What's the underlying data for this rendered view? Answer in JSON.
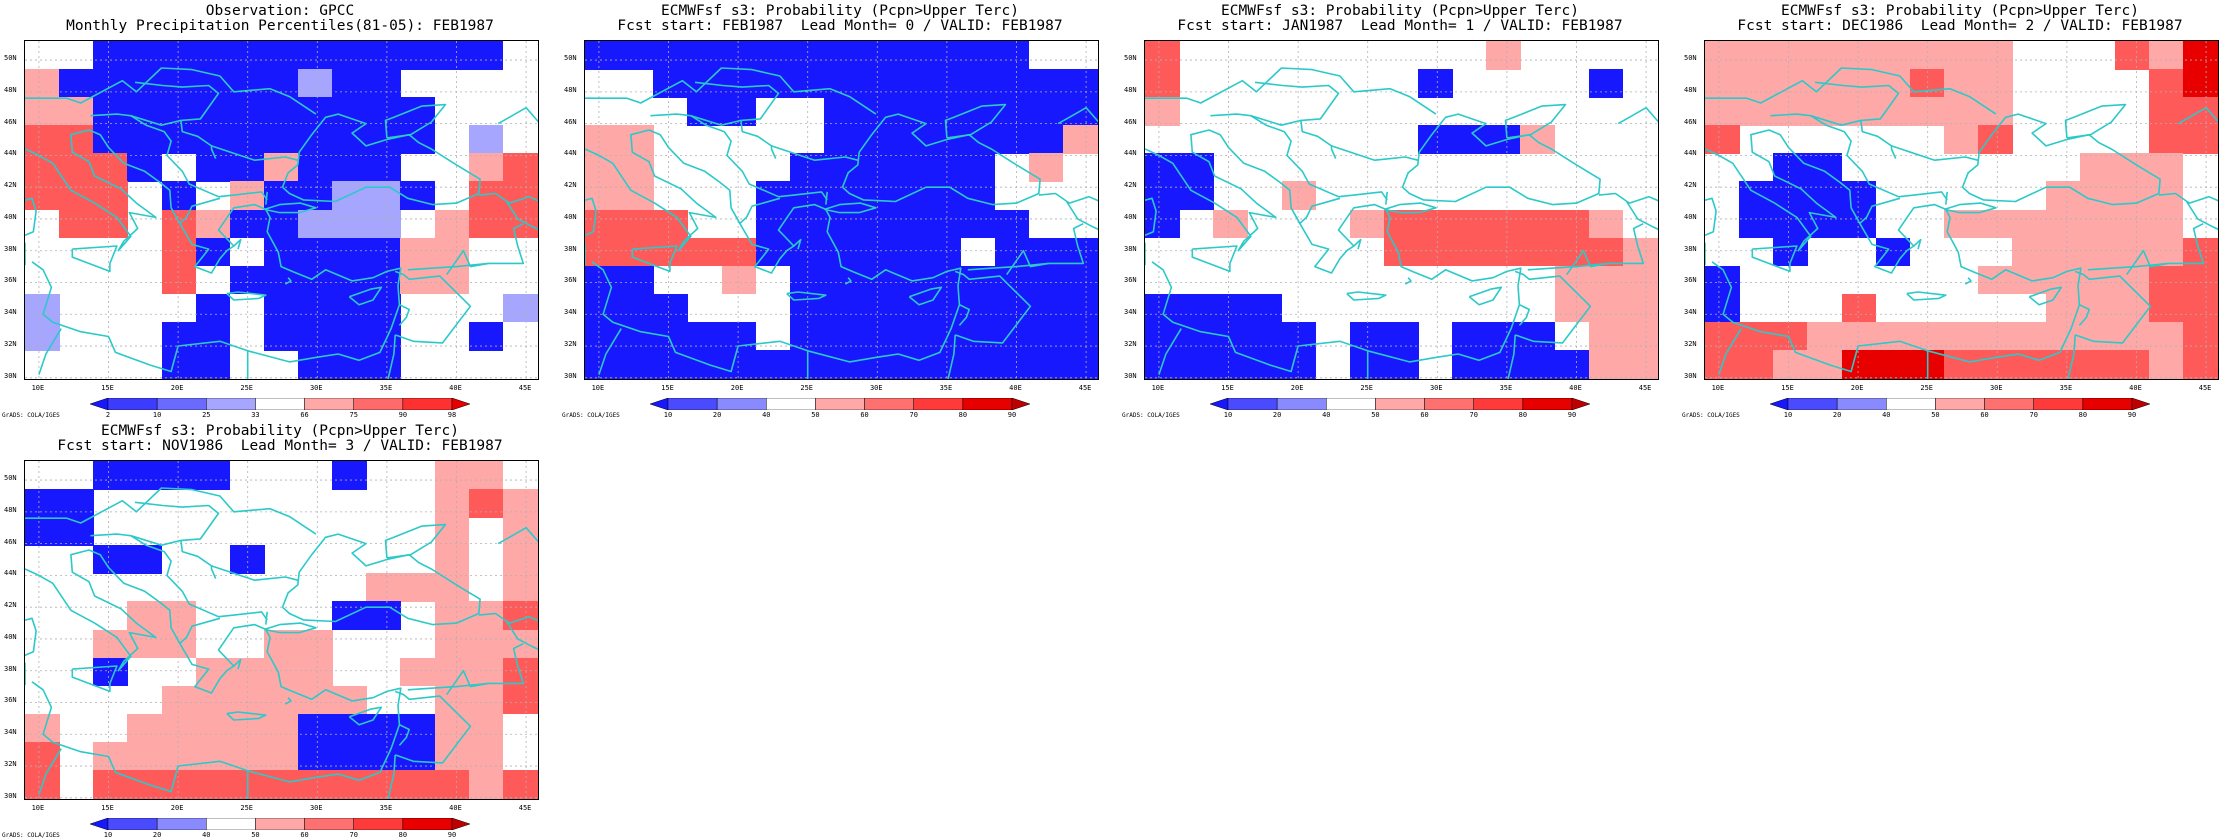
{
  "colors": {
    "dark_blue": "#1818ff",
    "mid_blue": "#5a5aff",
    "light_blue": "#a6a6ff",
    "white": "#ffffff",
    "light_red": "#ffa8a8",
    "mid_red": "#ff5a5a",
    "dark_red": "#e80000",
    "coast": "#2cc9c9",
    "grid": "#b0b0b0"
  },
  "lat_labels": [
    "50N",
    "48N",
    "46N",
    "44N",
    "42N",
    "40N",
    "38N",
    "36N",
    "34N",
    "32N",
    "30N"
  ],
  "lon_labels": [
    "10E",
    "15E",
    "20E",
    "25E",
    "30E",
    "35E",
    "40E",
    "45E"
  ],
  "credit": "GrADS: COLA/IGES",
  "panels": [
    {
      "title1": "Observation: GPCC",
      "title2": "Monthly Precipitation Percentiles(81-05): FEB1987",
      "cbar_ticks": [
        "2",
        "10",
        "25",
        "33",
        "66",
        "75",
        "90",
        "98"
      ],
      "cbar_colors": [
        "#1818ff",
        "#3c3cff",
        "#6a6aff",
        "#a6a6ff",
        "#ffffff",
        "#ffa8a8",
        "#ff6a6a",
        "#ff3030",
        "#e80000"
      ],
      "grid": [
        "WWBBBBBBBBBBBBW",
        "wBBBBBBBbBBWWWW",
        "wwBBBBBBBBBBWWW",
        "RRBBBBBBBBBBWbW",
        "RRRBWBBwBBBWWwR",
        "RRRWBWwBBbbBWRR",
        "WRRWRwBBbbbWwRR",
        "WWWWRBWBBBBwwWW",
        "WWWWRWBBBBBwwWW",
        "bWWWWBWBBBBWWWb",
        "bWWWBBWBBBBWWBW",
        "WWWWBBWWBBBWWWW"
      ]
    },
    {
      "title1": "ECMWFsf s3: Probability (Pcpn>Upper Terc)",
      "title2": "Fcst start: FEB1987  Lead Month= 0 / VALID: FEB1987",
      "cbar_ticks": [
        "10",
        "20",
        "40",
        "50",
        "60",
        "70",
        "80",
        "90"
      ],
      "cbar_colors": [
        "#1818ff",
        "#4a4aff",
        "#8a8aff",
        "#ffffff",
        "#ffa8a8",
        "#ff7070",
        "#ff3a3a",
        "#e80000",
        "#c00000"
      ],
      "grid": [
        "BBBBBBBBBBBBBWW",
        "WWBBBBBBBBBBBBB",
        "WWWBBWWBBBBBBBB",
        "wwWWWWWBBBBBBBw",
        "wwWWWWBBBBBBWwW",
        "wwWWWBBBBBBBWWW",
        "RRRWWBBBBBBBBWW",
        "RRRRRBBBBBBWBBB",
        "BBWWwWBBBBBBBBB",
        "BBBWWWBBBBBBBBB",
        "BBBBBWBBBBBBBBB",
        "BBBBBBBBBBBBBBB"
      ]
    },
    {
      "title1": "ECMWFsf s3: Probability (Pcpn>Upper Terc)",
      "title2": "Fcst start: JAN1987  Lead Month= 1 / VALID: FEB1987",
      "cbar_ticks": [
        "10",
        "20",
        "40",
        "50",
        "60",
        "70",
        "80",
        "90"
      ],
      "cbar_colors": [
        "#1818ff",
        "#4a4aff",
        "#8a8aff",
        "#ffffff",
        "#ffa8a8",
        "#ff7070",
        "#ff3a3a",
        "#e80000",
        "#c00000"
      ],
      "grid": [
        "RWWWWWWWWWwWWWW",
        "RWWWWWWWBWWWWBW",
        "wWWWWWWWWWWWWWW",
        "WWWWWWWWBBBwWWW",
        "BBWWWWWWWWWWWWW",
        "BBWWwWWWWWWWWWW",
        "BWwWWWwRRRRRRwW",
        "WWWWWWWRRRRRRRw",
        "WWWWWWWWWWWWwww",
        "BBBBWWWWWWWWwww",
        "BBBBBWBBWBBBWww",
        "BBBBBWBBWBBBBww"
      ]
    },
    {
      "title1": "ECMWFsf s3: Probability (Pcpn>Upper Terc)",
      "title2": "Fcst start: DEC1986  Lead Month= 2 / VALID: FEB1987",
      "cbar_ticks": [
        "10",
        "20",
        "40",
        "50",
        "60",
        "70",
        "80",
        "90"
      ],
      "cbar_colors": [
        "#1818ff",
        "#4a4aff",
        "#8a8aff",
        "#ffffff",
        "#ffa8a8",
        "#ff7070",
        "#ff3a3a",
        "#e80000",
        "#c00000"
      ],
      "grid": [
        "wwwwwwwwwWWWRwD",
        "wwwwwwRwwWWWWRD",
        "wwwwwwwwwWWWWRR",
        "RWWWWWWwRWWWWRR",
        "WWBBWWWWWWWwwwW",
        "WBBBBWWWWWwwwwW",
        "WBBBBWWwwwwwwwW",
        "WWBWWBWWWwwwwwR",
        "BWWWWWWWwwwwwRR",
        "BWWWRWWWWWwwwRR",
        "RRRwwwwwwwwwwwR",
        "RRwwDDDRRRRRRwR"
      ]
    },
    {
      "title1": "ECMWFsf s3: Probability (Pcpn>Upper Terc)",
      "title2": "Fcst start: NOV1986  Lead Month= 3 / VALID: FEB1987",
      "cbar_ticks": [
        "10",
        "20",
        "40",
        "50",
        "60",
        "70",
        "80",
        "90"
      ],
      "cbar_colors": [
        "#1818ff",
        "#4a4aff",
        "#8a8aff",
        "#ffffff",
        "#ffa8a8",
        "#ff7070",
        "#ff3a3a",
        "#e80000",
        "#c00000"
      ],
      "grid": [
        "WWBBBBWWWBWWwwW",
        "BBWWWWWWWWWWwRw",
        "BBWWWWWWWWWWwWw",
        "WWBBWWBWWWWWwWw",
        "WWWWWWWWWWwwwWw",
        "WWWwwWWWWBBWwwR",
        "WWwwwWWwwWWWwww",
        "WWBWWwwwwWWwwwR",
        "WWWWwwwwwwWWwwR",
        "wWWwwwwwBBBBwwW",
        "RWwwwwwwBBBBwwW",
        "RWRRRRRRRRRRRwR"
      ]
    }
  ]
}
